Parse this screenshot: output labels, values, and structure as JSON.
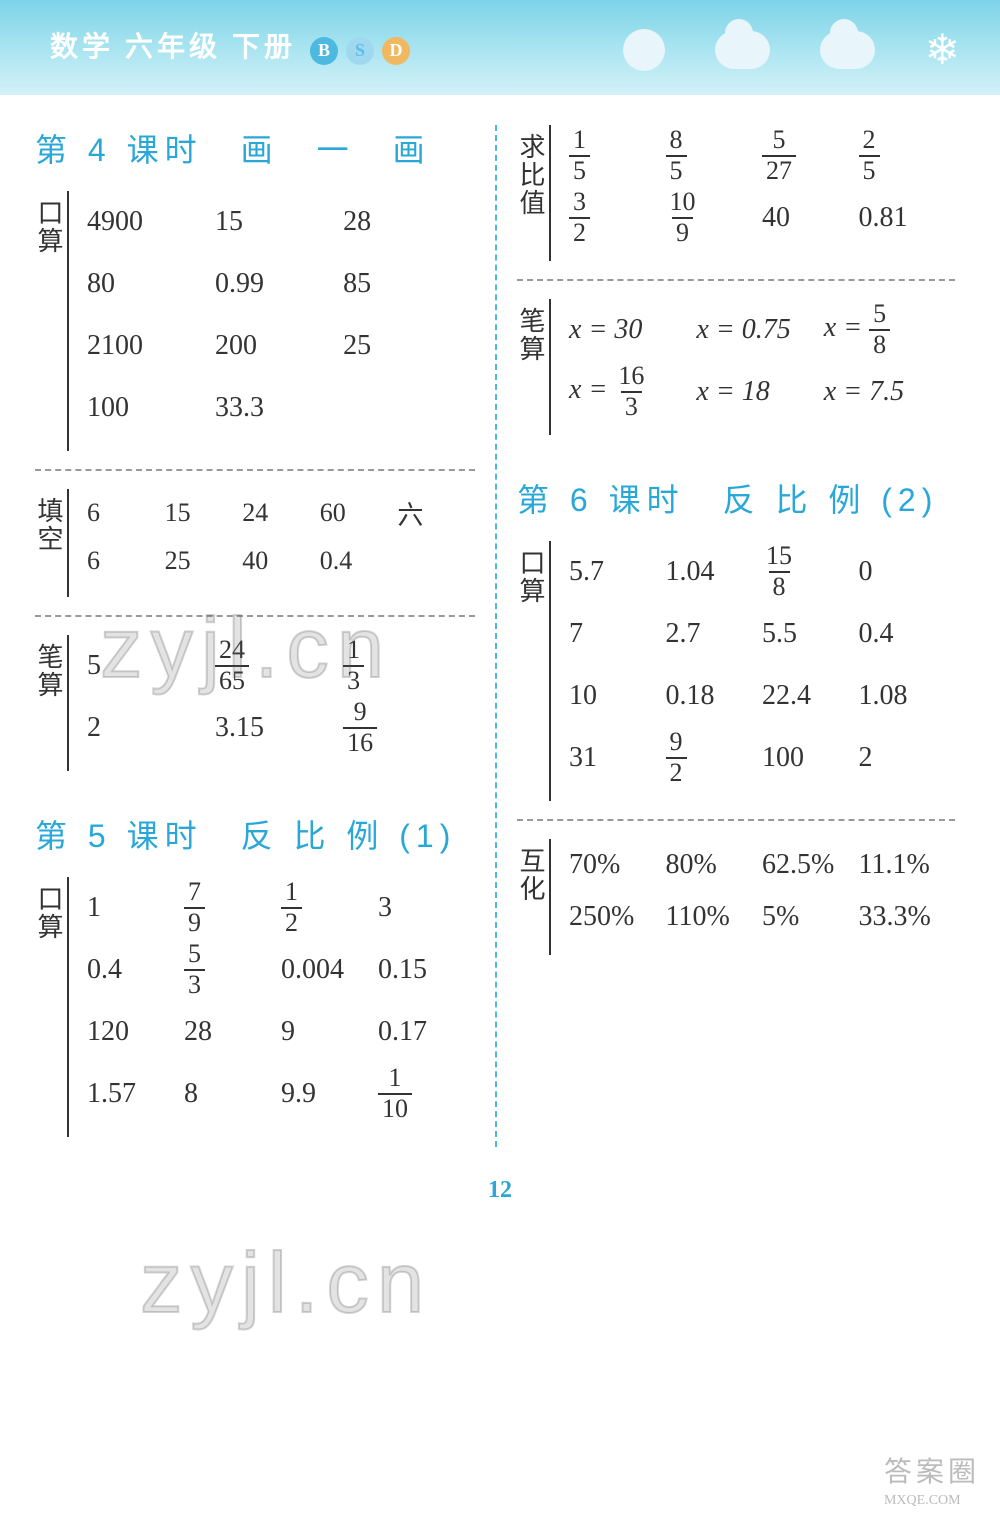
{
  "header": {
    "title": "数学 六年级 下册",
    "badges": [
      "B",
      "S",
      "D"
    ]
  },
  "colors": {
    "accent": "#29a8d8",
    "text": "#333333",
    "header_gradient_start": "#7dd3e8",
    "header_gradient_end": "#d4f1f8"
  },
  "page_number": "12",
  "left_column": {
    "lesson4": {
      "title": "第 4 课时　画　一　画",
      "kousuan": {
        "label": "口算",
        "rows": [
          [
            "4900",
            "15",
            "28"
          ],
          [
            "80",
            "0.99",
            "85"
          ],
          [
            "2100",
            "200",
            "25"
          ],
          [
            "100",
            "33.3",
            ""
          ]
        ]
      },
      "tiankong": {
        "label": "填空",
        "rows": [
          [
            "6",
            "15",
            "24",
            "60",
            "六"
          ],
          [
            "6",
            "25",
            "40",
            "0.4",
            ""
          ]
        ]
      },
      "bisuan": {
        "label": "笔算",
        "rows": [
          [
            {
              "v": "5"
            },
            {
              "frac": [
                "24",
                "65"
              ]
            },
            {
              "frac": [
                "1",
                "3"
              ]
            }
          ],
          [
            {
              "v": "2"
            },
            {
              "v": "3.15"
            },
            {
              "frac": [
                "9",
                "16"
              ]
            }
          ]
        ]
      }
    },
    "lesson5": {
      "title": "第 5 课时　反 比 例 (1)",
      "kousuan": {
        "label": "口算",
        "rows": [
          [
            {
              "v": "1"
            },
            {
              "frac": [
                "7",
                "9"
              ]
            },
            {
              "frac": [
                "1",
                "2"
              ]
            },
            {
              "v": "3"
            }
          ],
          [
            {
              "v": "0.4"
            },
            {
              "frac": [
                "5",
                "3"
              ]
            },
            {
              "v": "0.004"
            },
            {
              "v": "0.15"
            }
          ],
          [
            {
              "v": "120"
            },
            {
              "v": "28"
            },
            {
              "v": "9"
            },
            {
              "v": "0.17"
            }
          ],
          [
            {
              "v": "1.57"
            },
            {
              "v": "8"
            },
            {
              "v": "9.9"
            },
            {
              "frac": [
                "1",
                "10"
              ]
            }
          ]
        ]
      }
    }
  },
  "right_column": {
    "qiubizhi": {
      "label": "求比值",
      "rows": [
        [
          {
            "frac": [
              "1",
              "5"
            ]
          },
          {
            "frac": [
              "8",
              "5"
            ]
          },
          {
            "frac": [
              "5",
              "27"
            ]
          },
          {
            "frac": [
              "2",
              "5"
            ]
          }
        ],
        [
          {
            "frac": [
              "3",
              "2"
            ]
          },
          {
            "frac": [
              "10",
              "9"
            ]
          },
          {
            "v": "40"
          },
          {
            "v": "0.81"
          }
        ]
      ]
    },
    "bisuan": {
      "label": "笔算",
      "rows": [
        [
          {
            "eq": "x = 30"
          },
          {
            "eq": "x = 0.75"
          },
          {
            "eqfrac": {
              "lhs": "x =",
              "num": "5",
              "den": "8"
            }
          }
        ],
        [
          {
            "eqfrac": {
              "lhs": "x =",
              "num": "16",
              "den": "3"
            }
          },
          {
            "eq": "x = 18"
          },
          {
            "eq": "x = 7.5"
          }
        ]
      ]
    },
    "lesson6": {
      "title": "第 6 课时　反 比 例 (2)",
      "kousuan": {
        "label": "口算",
        "rows": [
          [
            {
              "v": "5.7"
            },
            {
              "v": "1.04"
            },
            {
              "frac": [
                "15",
                "8"
              ]
            },
            {
              "v": "0"
            }
          ],
          [
            {
              "v": "7"
            },
            {
              "v": "2.7"
            },
            {
              "v": "5.5"
            },
            {
              "v": "0.4"
            }
          ],
          [
            {
              "v": "10"
            },
            {
              "v": "0.18"
            },
            {
              "v": "22.4"
            },
            {
              "v": "1.08"
            }
          ],
          [
            {
              "v": "31"
            },
            {
              "frac": [
                "9",
                "2"
              ]
            },
            {
              "v": "100"
            },
            {
              "v": "2"
            }
          ]
        ]
      },
      "huhua": {
        "label": "互化",
        "rows": [
          [
            "70%",
            "80%",
            "62.5%",
            "11.1%"
          ],
          [
            "250%",
            "110%",
            "5%",
            "33.3%"
          ]
        ]
      }
    }
  },
  "watermark": "zyjl.cn",
  "footer": {
    "line1": "答案圈",
    "line2": "MXQE.COM"
  }
}
